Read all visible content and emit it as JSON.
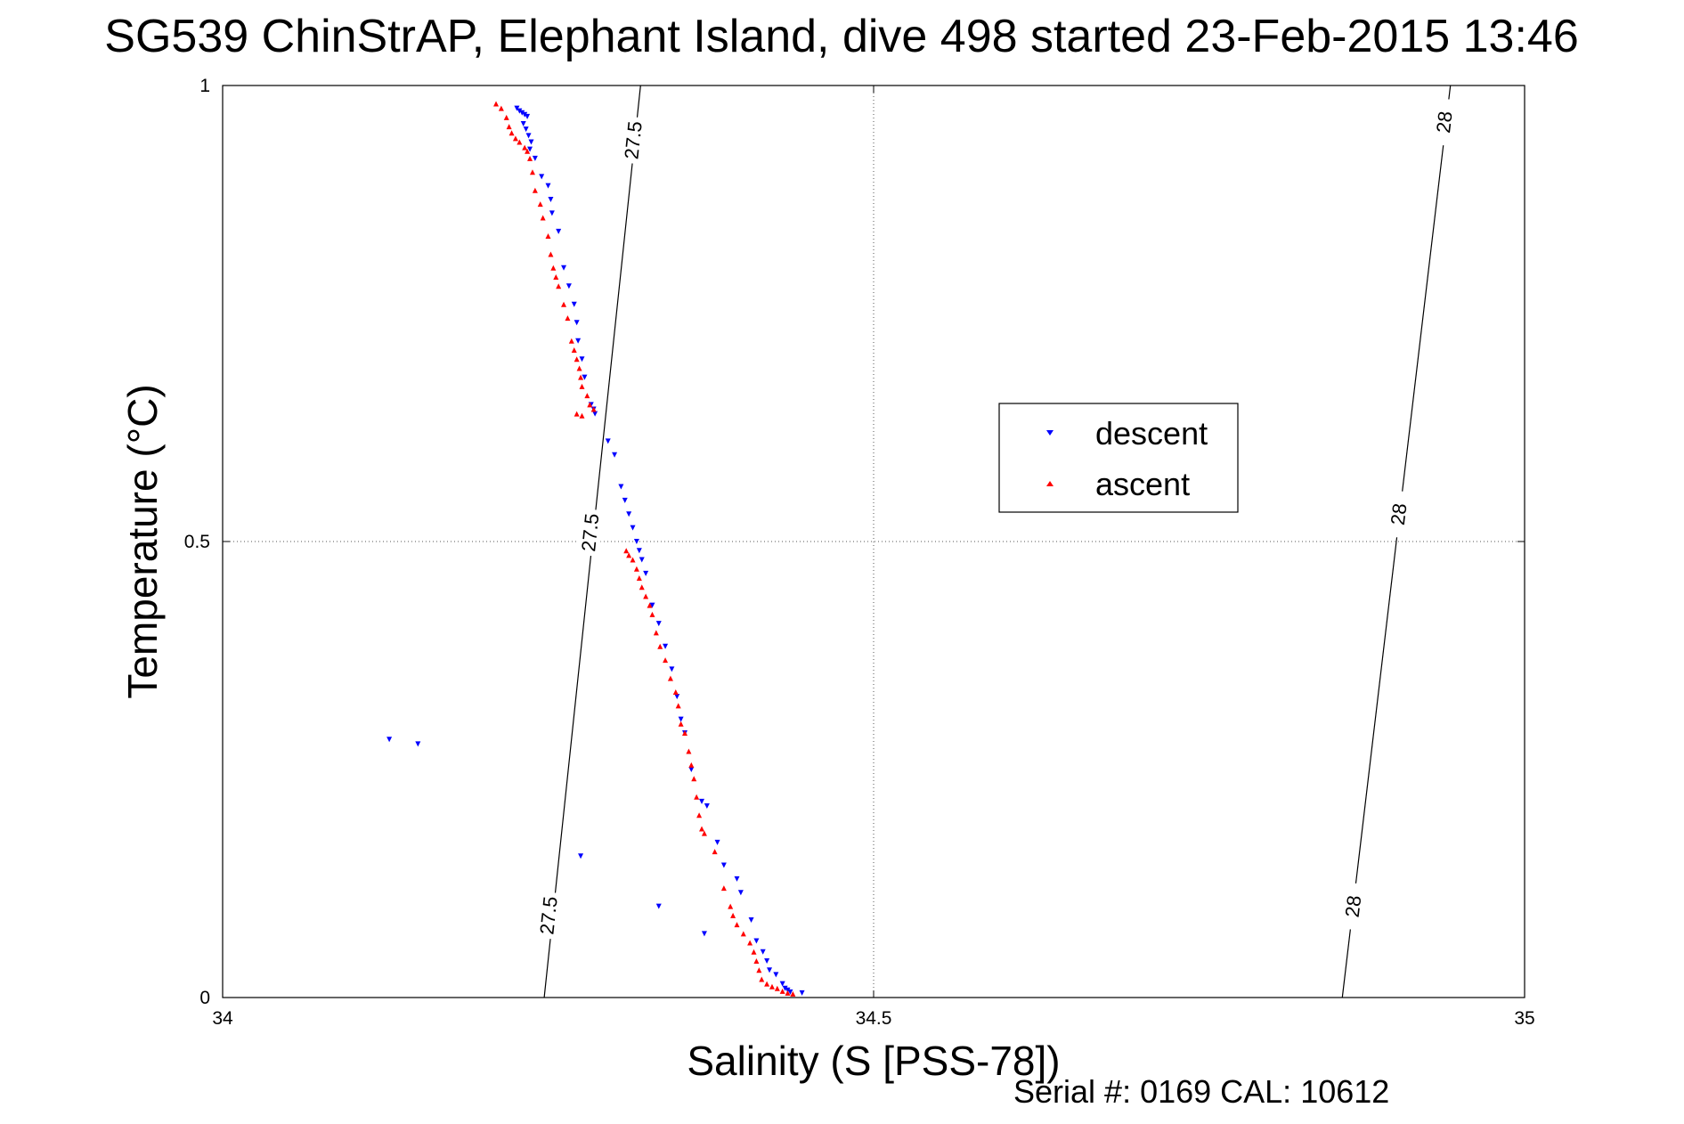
{
  "chart_data": {
    "type": "scatter",
    "title": "SG539 ChinStrAP, Elephant Island, dive 498 started 23-Feb-2015 13:46",
    "xlabel": "Salinity (S [PSS-78])",
    "ylabel": "Temperature (°C)",
    "xlim": [
      34,
      35
    ],
    "ylim": [
      0,
      1
    ],
    "xticks": [
      "34",
      "34.5",
      "35"
    ],
    "yticks": [
      "0",
      "0.5",
      "1"
    ],
    "grid": true,
    "legend_position": "center-right",
    "footer": "Serial #: 0169 CAL: 10612",
    "colors": {
      "descent": "#0000ff",
      "ascent": "#ff0000"
    },
    "contours": [
      {
        "label": "27.5",
        "points": [
          [
            34.247,
            0.0
          ],
          [
            34.321,
            1.0
          ]
        ]
      },
      {
        "label": "28",
        "points": [
          [
            34.86,
            0.0
          ],
          [
            34.943,
            1.0
          ]
        ]
      }
    ],
    "contour_labels": [
      {
        "text": "27.5",
        "x": 34.315,
        "y": 0.94
      },
      {
        "text": "27.5",
        "x": 34.282,
        "y": 0.51
      },
      {
        "text": "27.5",
        "x": 34.25,
        "y": 0.09
      },
      {
        "text": "28",
        "x": 34.938,
        "y": 0.96
      },
      {
        "text": "28",
        "x": 34.903,
        "y": 0.53
      },
      {
        "text": "28",
        "x": 34.868,
        "y": 0.1
      }
    ],
    "series": [
      {
        "name": "descent",
        "marker": "triangle-down",
        "points": [
          [
            34.226,
            0.975
          ],
          [
            34.228,
            0.972
          ],
          [
            34.23,
            0.97
          ],
          [
            34.232,
            0.968
          ],
          [
            34.234,
            0.966
          ],
          [
            34.231,
            0.958
          ],
          [
            34.233,
            0.952
          ],
          [
            34.235,
            0.945
          ],
          [
            34.237,
            0.938
          ],
          [
            34.236,
            0.93
          ],
          [
            34.24,
            0.92
          ],
          [
            34.245,
            0.9
          ],
          [
            34.25,
            0.89
          ],
          [
            34.252,
            0.875
          ],
          [
            34.253,
            0.86
          ],
          [
            34.258,
            0.84
          ],
          [
            34.262,
            0.8
          ],
          [
            34.266,
            0.78
          ],
          [
            34.27,
            0.76
          ],
          [
            34.272,
            0.74
          ],
          [
            34.273,
            0.72
          ],
          [
            34.276,
            0.7
          ],
          [
            34.278,
            0.68
          ],
          [
            34.283,
            0.65
          ],
          [
            34.285,
            0.645
          ],
          [
            34.286,
            0.64
          ],
          [
            34.296,
            0.61
          ],
          [
            34.301,
            0.595
          ],
          [
            34.306,
            0.56
          ],
          [
            34.309,
            0.545
          ],
          [
            34.312,
            0.53
          ],
          [
            34.315,
            0.515
          ],
          [
            34.318,
            0.5
          ],
          [
            34.32,
            0.49
          ],
          [
            34.322,
            0.48
          ],
          [
            34.325,
            0.465
          ],
          [
            34.33,
            0.43
          ],
          [
            34.335,
            0.41
          ],
          [
            34.34,
            0.385
          ],
          [
            34.345,
            0.36
          ],
          [
            34.349,
            0.33
          ],
          [
            34.352,
            0.305
          ],
          [
            34.355,
            0.29
          ],
          [
            34.36,
            0.25
          ],
          [
            34.368,
            0.215
          ],
          [
            34.372,
            0.21
          ],
          [
            34.38,
            0.17
          ],
          [
            34.385,
            0.145
          ],
          [
            34.395,
            0.13
          ],
          [
            34.398,
            0.115
          ],
          [
            34.406,
            0.085
          ],
          [
            34.41,
            0.062
          ],
          [
            34.415,
            0.05
          ],
          [
            34.418,
            0.04
          ],
          [
            34.42,
            0.03
          ],
          [
            34.425,
            0.025
          ],
          [
            34.43,
            0.015
          ],
          [
            34.432,
            0.01
          ],
          [
            34.434,
            0.008
          ],
          [
            34.436,
            0.006
          ],
          [
            34.128,
            0.283
          ],
          [
            34.15,
            0.278
          ],
          [
            34.275,
            0.155
          ],
          [
            34.335,
            0.1
          ],
          [
            34.37,
            0.07
          ],
          [
            34.445,
            0.005
          ]
        ]
      },
      {
        "name": "ascent",
        "marker": "triangle-up",
        "points": [
          [
            34.21,
            0.98
          ],
          [
            34.214,
            0.975
          ],
          [
            34.218,
            0.965
          ],
          [
            34.22,
            0.955
          ],
          [
            34.222,
            0.948
          ],
          [
            34.225,
            0.942
          ],
          [
            34.228,
            0.938
          ],
          [
            34.232,
            0.932
          ],
          [
            34.234,
            0.928
          ],
          [
            34.236,
            0.92
          ],
          [
            34.238,
            0.905
          ],
          [
            34.24,
            0.885
          ],
          [
            34.244,
            0.87
          ],
          [
            34.246,
            0.855
          ],
          [
            34.25,
            0.835
          ],
          [
            34.252,
            0.815
          ],
          [
            34.254,
            0.8
          ],
          [
            34.256,
            0.79
          ],
          [
            34.258,
            0.78
          ],
          [
            34.262,
            0.76
          ],
          [
            34.265,
            0.745
          ],
          [
            34.268,
            0.72
          ],
          [
            34.27,
            0.71
          ],
          [
            34.272,
            0.7
          ],
          [
            34.274,
            0.69
          ],
          [
            34.275,
            0.68
          ],
          [
            34.276,
            0.67
          ],
          [
            34.28,
            0.66
          ],
          [
            34.282,
            0.65
          ],
          [
            34.285,
            0.645
          ],
          [
            34.272,
            0.64
          ],
          [
            34.276,
            0.638
          ],
          [
            34.31,
            0.49
          ],
          [
            34.312,
            0.485
          ],
          [
            34.315,
            0.48
          ],
          [
            34.318,
            0.47
          ],
          [
            34.32,
            0.46
          ],
          [
            34.322,
            0.45
          ],
          [
            34.325,
            0.44
          ],
          [
            34.328,
            0.43
          ],
          [
            34.33,
            0.42
          ],
          [
            34.333,
            0.4
          ],
          [
            34.336,
            0.385
          ],
          [
            34.34,
            0.37
          ],
          [
            34.344,
            0.35
          ],
          [
            34.348,
            0.335
          ],
          [
            34.35,
            0.32
          ],
          [
            34.352,
            0.3
          ],
          [
            34.355,
            0.29
          ],
          [
            34.358,
            0.27
          ],
          [
            34.36,
            0.255
          ],
          [
            34.362,
            0.24
          ],
          [
            34.364,
            0.22
          ],
          [
            34.366,
            0.2
          ],
          [
            34.368,
            0.185
          ],
          [
            34.37,
            0.18
          ],
          [
            34.378,
            0.16
          ],
          [
            34.385,
            0.12
          ],
          [
            34.39,
            0.1
          ],
          [
            34.392,
            0.09
          ],
          [
            34.395,
            0.08
          ],
          [
            34.4,
            0.07
          ],
          [
            34.405,
            0.06
          ],
          [
            34.408,
            0.05
          ],
          [
            34.41,
            0.04
          ],
          [
            34.412,
            0.03
          ],
          [
            34.414,
            0.02
          ],
          [
            34.418,
            0.015
          ],
          [
            34.422,
            0.012
          ],
          [
            34.426,
            0.01
          ],
          [
            34.43,
            0.007
          ],
          [
            34.434,
            0.005
          ],
          [
            34.438,
            0.004
          ]
        ]
      }
    ]
  }
}
